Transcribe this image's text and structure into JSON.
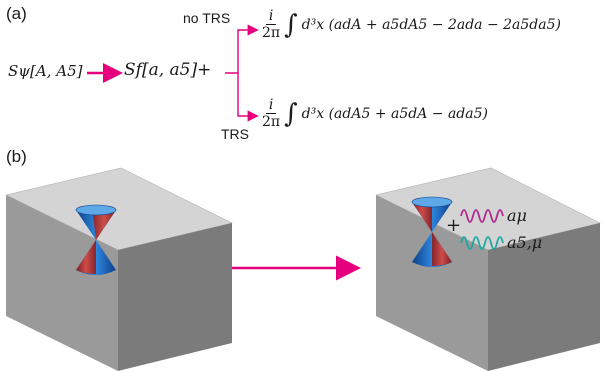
{
  "panel_a": {
    "label": "(a)",
    "lhs": "Sψ[A, A5]",
    "mid": "Sf[a, a5]+",
    "branch_top": {
      "label": "no TRS",
      "frac_num": "i",
      "frac_den": "2π",
      "integral": "∫",
      "expr": "d³x (adA + a5dA5 − 2ada − 2a5da5)"
    },
    "branch_bottom": {
      "label": "TRS",
      "frac_num": "i",
      "frac_den": "2π",
      "integral": "∫",
      "expr": "d³x (adA5 + a5dA − ada5)"
    }
  },
  "panel_b": {
    "label": "(b)",
    "plus": "+",
    "field_1": "aμ",
    "field_2": "a5,μ"
  },
  "colors": {
    "arrow": "#e6007e",
    "wave_1": "#b02a8f",
    "wave_2": "#1fa7a0",
    "cone_blue": "#1565c0",
    "cone_red": "#c62828",
    "box_top": "#d0d0d0",
    "box_side": "#8a8a8a"
  }
}
